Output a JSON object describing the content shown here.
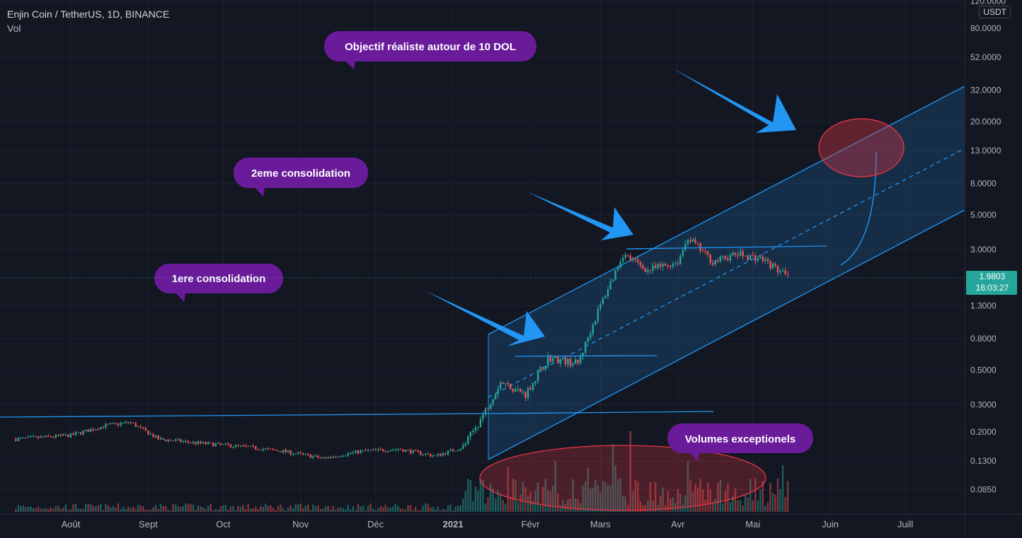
{
  "header": {
    "title": "Enjin Coin / TetherUS, 1D, BINANCE",
    "indicator": "Vol"
  },
  "price_axis": {
    "unit": "USDT",
    "last_price": "1.9803",
    "countdown": "16:03:27"
  },
  "colors": {
    "background": "#131722",
    "grid": "#1e2230",
    "up": "#26a69a",
    "down": "#ef5350",
    "channel_line": "#2196f3",
    "callout": "#6a1b9a",
    "ellipse": "#f23645",
    "arrow": "#2196f3"
  },
  "chart_data": {
    "type": "candlestick",
    "symbol": "ENJUSDT",
    "timeframe": "1D",
    "y_scale": "log",
    "ylim": [
      0.07,
      120
    ],
    "y_ticks": [
      "120.0000",
      "80.0000",
      "52.0000",
      "32.0000",
      "20.0000",
      "13.0000",
      "8.0000",
      "5.0000",
      "3.0000",
      "1.9803",
      "1.3000",
      "0.8000",
      "0.5000",
      "0.3000",
      "0.2000",
      "0.1300",
      "0.0850"
    ],
    "x_ticks": [
      "Août",
      "Sept",
      "Oct",
      "Nov",
      "Déc",
      "2021",
      "Févr",
      "Mars",
      "Avr",
      "Mai",
      "Juin",
      "Juill"
    ],
    "price_path": [
      {
        "date": "2020-07-10",
        "close": 0.18
      },
      {
        "date": "2020-08-01",
        "close": 0.19
      },
      {
        "date": "2020-08-15",
        "close": 0.22
      },
      {
        "date": "2020-08-25",
        "close": 0.23
      },
      {
        "date": "2020-09-05",
        "close": 0.18
      },
      {
        "date": "2020-09-20",
        "close": 0.17
      },
      {
        "date": "2020-10-10",
        "close": 0.16
      },
      {
        "date": "2020-10-25",
        "close": 0.15
      },
      {
        "date": "2020-11-10",
        "close": 0.135
      },
      {
        "date": "2020-11-25",
        "close": 0.15
      },
      {
        "date": "2020-12-10",
        "close": 0.155
      },
      {
        "date": "2020-12-25",
        "close": 0.14
      },
      {
        "date": "2021-01-05",
        "close": 0.16
      },
      {
        "date": "2021-01-12",
        "close": 0.24
      },
      {
        "date": "2021-01-20",
        "close": 0.42
      },
      {
        "date": "2021-01-30",
        "close": 0.35
      },
      {
        "date": "2021-02-08",
        "close": 0.6
      },
      {
        "date": "2021-02-20",
        "close": 0.55
      },
      {
        "date": "2021-02-28",
        "close": 1.2
      },
      {
        "date": "2021-03-10",
        "close": 2.8
      },
      {
        "date": "2021-03-20",
        "close": 2.2
      },
      {
        "date": "2021-04-01",
        "close": 2.5
      },
      {
        "date": "2021-04-05",
        "close": 3.6
      },
      {
        "date": "2021-04-15",
        "close": 2.5
      },
      {
        "date": "2021-04-25",
        "close": 2.8
      },
      {
        "date": "2021-05-05",
        "close": 2.6
      },
      {
        "date": "2021-05-15",
        "close": 1.98
      }
    ],
    "volume_series": "Vol"
  },
  "annotations": {
    "callouts": [
      "Objectif réaliste autour de 10 DOL",
      "2eme consolidation",
      "1ere consolidation",
      "Volumes exceptionels"
    ]
  }
}
